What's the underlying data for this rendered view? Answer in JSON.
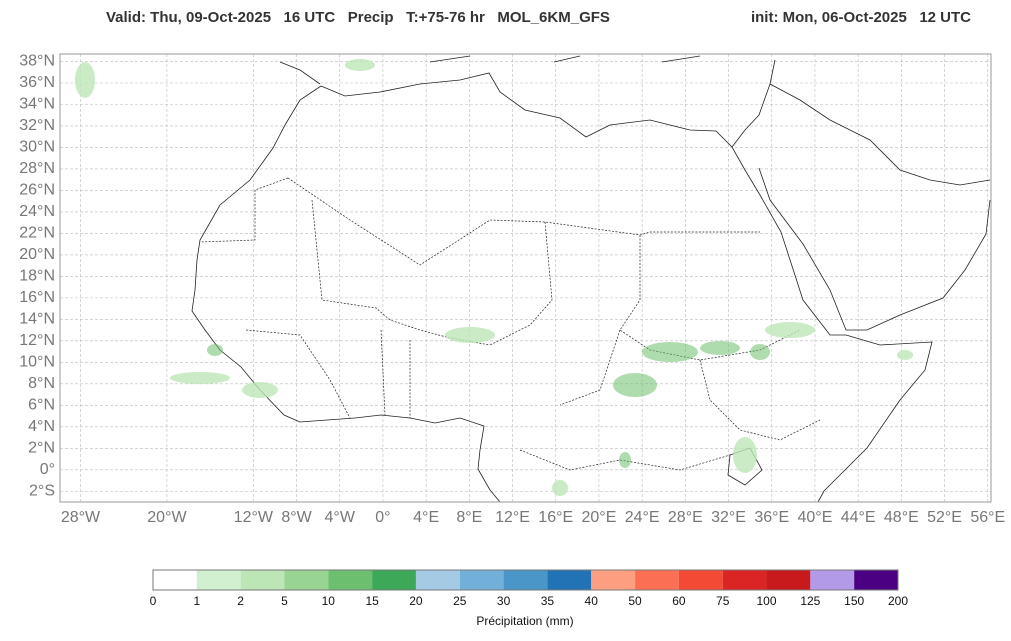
{
  "header": {
    "title_left": "Valid: Thu, 09-Oct-2025   16 UTC   Precip   T:+75-76 hr   MOL_6KM_GFS",
    "title_right": "init: Mon, 06-Oct-2025   12 UTC"
  },
  "map": {
    "lon_range": [
      -29.9,
      56.3
    ],
    "lat_range": [
      38.7,
      -3
    ],
    "lat_ticks": [
      {
        "value": 38,
        "label": "38°N"
      },
      {
        "value": 36,
        "label": "36°N"
      },
      {
        "value": 34,
        "label": "34°N"
      },
      {
        "value": 32,
        "label": "32°N"
      },
      {
        "value": 30,
        "label": "30°N"
      },
      {
        "value": 28,
        "label": "28°N"
      },
      {
        "value": 26,
        "label": "26°N"
      },
      {
        "value": 24,
        "label": "24°N"
      },
      {
        "value": 22,
        "label": "22°N"
      },
      {
        "value": 20,
        "label": "20°N"
      },
      {
        "value": 18,
        "label": "18°N"
      },
      {
        "value": 16,
        "label": "16°N"
      },
      {
        "value": 14,
        "label": "14°N"
      },
      {
        "value": 12,
        "label": "12°N"
      },
      {
        "value": 10,
        "label": "10°N"
      },
      {
        "value": 8,
        "label": "8°N"
      },
      {
        "value": 6,
        "label": "6°N"
      },
      {
        "value": 4,
        "label": "4°N"
      },
      {
        "value": 2,
        "label": "2°N"
      },
      {
        "value": 0,
        "label": "0°"
      },
      {
        "value": -2,
        "label": "2°S"
      }
    ],
    "lon_ticks": [
      {
        "value": -28,
        "label": "28°W"
      },
      {
        "value": -20,
        "label": "20°W"
      },
      {
        "value": -12,
        "label": "12°W"
      },
      {
        "value": -8,
        "label": "8°W"
      },
      {
        "value": -4,
        "label": "4°W"
      },
      {
        "value": 0,
        "label": "0°"
      },
      {
        "value": 4,
        "label": "4°E"
      },
      {
        "value": 8,
        "label": "8°E"
      },
      {
        "value": 12,
        "label": "12°E"
      },
      {
        "value": 16,
        "label": "16°E"
      },
      {
        "value": 20,
        "label": "20°E"
      },
      {
        "value": 24,
        "label": "24°E"
      },
      {
        "value": 28,
        "label": "28°E"
      },
      {
        "value": 32,
        "label": "32°E"
      },
      {
        "value": 36,
        "label": "36°E"
      },
      {
        "value": 40,
        "label": "40°E"
      },
      {
        "value": 44,
        "label": "44°E"
      },
      {
        "value": 48,
        "label": "48°E"
      },
      {
        "value": 52,
        "label": "52°E"
      },
      {
        "value": 56,
        "label": "56°E"
      }
    ]
  },
  "colorbar": {
    "label": "Précipitation (mm)",
    "bounds": [
      0,
      1,
      2,
      5,
      10,
      15,
      20,
      25,
      30,
      35,
      40,
      50,
      60,
      75,
      100,
      125,
      150,
      200
    ],
    "colors": [
      "#ffffff",
      "#d1f0d0",
      "#bde6b6",
      "#98d593",
      "#6bbf6e",
      "#3ea859",
      "#a5cbe4",
      "#72afd9",
      "#4b96c8",
      "#2273b6",
      "#fc9e80",
      "#fb7054",
      "#f34a36",
      "#db2524",
      "#c81a1c",
      "#b39ae9",
      "#4b0084"
    ]
  }
}
